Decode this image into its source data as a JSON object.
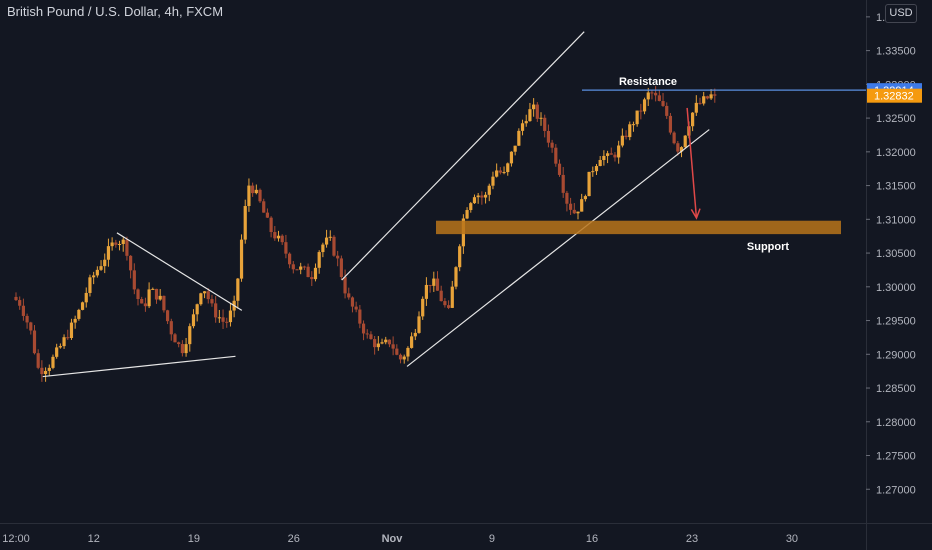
{
  "header": {
    "title": "British Pound / U.S. Dollar, 4h, FXCM",
    "currency_button": "USD"
  },
  "colors": {
    "background": "#131722",
    "candle_up": "#e8a33a",
    "candle_down": "#a84a32",
    "resistance_line": "#5b8fe0",
    "resistance_badge": "#3d7ae8",
    "last_price_badge": "#f59a0f",
    "support_zone": "#b8741a",
    "trendline": "#e6e6e6",
    "arrow": "#e04848"
  },
  "chart_data": {
    "type": "candlestick",
    "symbol": "GBPUSD",
    "timeframe": "4h",
    "source": "FXCM",
    "ylim": [
      1.265,
      1.3425
    ],
    "y_ticks": [
      "1.34000",
      "1.33500",
      "1.33000",
      "1.32500",
      "1.32000",
      "1.31500",
      "1.31000",
      "1.30500",
      "1.30000",
      "1.29500",
      "1.29000",
      "1.28500",
      "1.28000",
      "1.27500",
      "1.27000"
    ],
    "x_ticks": [
      {
        "label": "12:00",
        "pos": 0.0
      },
      {
        "label": "12",
        "pos": 0.0942
      },
      {
        "label": "19",
        "pos": 0.2153
      },
      {
        "label": "26",
        "pos": 0.3363
      },
      {
        "label": "Nov",
        "pos": 0.4552
      },
      {
        "label": "9",
        "pos": 0.5762
      },
      {
        "label": "16",
        "pos": 0.6973
      },
      {
        "label": "23",
        "pos": 0.8184
      },
      {
        "label": "30",
        "pos": 0.9394
      }
    ],
    "price_path": [
      [
        0.0,
        1.2985
      ],
      [
        0.01,
        1.2975
      ],
      [
        0.022,
        1.2935
      ],
      [
        0.032,
        1.2875
      ],
      [
        0.045,
        1.2885
      ],
      [
        0.06,
        1.2915
      ],
      [
        0.078,
        1.2955
      ],
      [
        0.095,
        1.301
      ],
      [
        0.11,
        1.304
      ],
      [
        0.125,
        1.307
      ],
      [
        0.137,
        1.3065
      ],
      [
        0.148,
        1.2995
      ],
      [
        0.158,
        1.2965
      ],
      [
        0.166,
        1.2995
      ],
      [
        0.178,
        1.2985
      ],
      [
        0.192,
        1.2935
      ],
      [
        0.205,
        1.2905
      ],
      [
        0.217,
        1.2945
      ],
      [
        0.23,
        1.3005
      ],
      [
        0.243,
        1.2965
      ],
      [
        0.258,
        1.2945
      ],
      [
        0.27,
        1.2975
      ],
      [
        0.28,
        1.31
      ],
      [
        0.287,
        1.3155
      ],
      [
        0.298,
        1.313
      ],
      [
        0.312,
        1.3085
      ],
      [
        0.325,
        1.3065
      ],
      [
        0.34,
        1.303
      ],
      [
        0.352,
        1.3025
      ],
      [
        0.362,
        1.3015
      ],
      [
        0.373,
        1.306
      ],
      [
        0.384,
        1.307
      ],
      [
        0.395,
        1.3035
      ],
      [
        0.405,
        1.2985
      ],
      [
        0.418,
        1.2955
      ],
      [
        0.43,
        1.2925
      ],
      [
        0.445,
        1.291
      ],
      [
        0.458,
        1.292
      ],
      [
        0.468,
        1.289
      ],
      [
        0.478,
        1.2905
      ],
      [
        0.488,
        1.294
      ],
      [
        0.498,
        1.2995
      ],
      [
        0.508,
        1.301
      ],
      [
        0.518,
        1.2985
      ],
      [
        0.528,
        1.296
      ],
      [
        0.538,
        1.304
      ],
      [
        0.548,
        1.3115
      ],
      [
        0.56,
        1.314
      ],
      [
        0.572,
        1.313
      ],
      [
        0.584,
        1.3175
      ],
      [
        0.596,
        1.3165
      ],
      [
        0.608,
        1.321
      ],
      [
        0.62,
        1.325
      ],
      [
        0.63,
        1.3265
      ],
      [
        0.642,
        1.324
      ],
      [
        0.652,
        1.321
      ],
      [
        0.662,
        1.3175
      ],
      [
        0.67,
        1.313
      ],
      [
        0.68,
        1.311
      ],
      [
        0.69,
        1.3125
      ],
      [
        0.7,
        1.317
      ],
      [
        0.712,
        1.3195
      ],
      [
        0.722,
        1.319
      ],
      [
        0.732,
        1.32
      ],
      [
        0.742,
        1.3225
      ],
      [
        0.752,
        1.3245
      ],
      [
        0.762,
        1.3265
      ],
      [
        0.772,
        1.329
      ],
      [
        0.782,
        1.3275
      ],
      [
        0.792,
        1.3255
      ],
      [
        0.8,
        1.322
      ],
      [
        0.808,
        1.32
      ],
      [
        0.816,
        1.3235
      ],
      [
        0.826,
        1.3265
      ],
      [
        0.836,
        1.3275
      ],
      [
        0.846,
        1.3283
      ]
    ],
    "annotations": {
      "resistance": {
        "label": "Resistance",
        "price": 1.32914,
        "badge": "1.32914"
      },
      "last_price": {
        "price": 1.32832,
        "badge": "1.32832"
      },
      "support": {
        "label": "Support",
        "price_low": 1.3084,
        "price_high": 1.3092
      },
      "trendlines": [
        {
          "name": "triangle-lower",
          "from": [
            0.0324,
            1.2867
          ],
          "to": [
            0.2657,
            1.2897
          ]
        },
        {
          "name": "triangle-upper",
          "from": [
            0.1222,
            1.308
          ],
          "to": [
            0.2734,
            1.2965
          ]
        },
        {
          "name": "channel-upper",
          "from": [
            0.3943,
            1.301
          ],
          "to": [
            0.6879,
            1.3378
          ]
        },
        {
          "name": "channel-lower",
          "from": [
            0.4734,
            1.2882
          ],
          "to": [
            0.8393,
            1.3233
          ]
        }
      ],
      "arrow": {
        "from": [
          0.8125,
          1.3265
        ],
        "to": [
          0.8238,
          1.3102
        ]
      }
    }
  }
}
